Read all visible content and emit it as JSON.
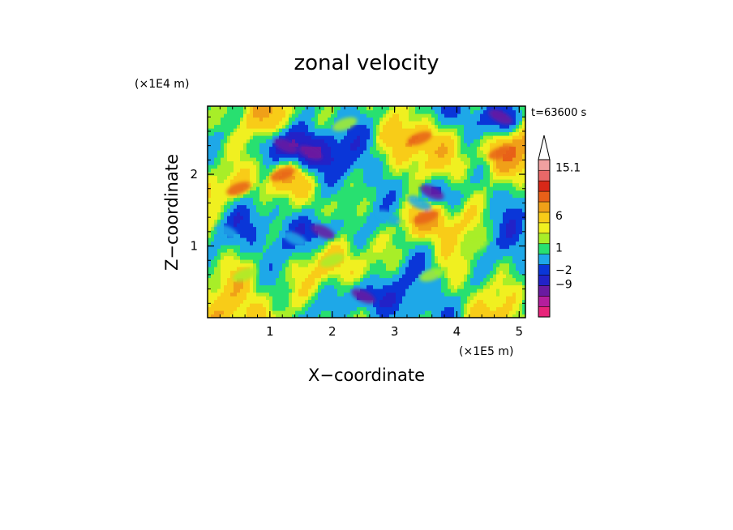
{
  "chart_data": {
    "type": "heatmap",
    "title": "zonal velocity",
    "xlabel": "X−coordinate",
    "ylabel": "Z−coordinate",
    "x_unit": "(×1E5 m)",
    "y_unit": "(×1E4 m)",
    "time_label": "t=63600 s",
    "xlim": [
      0,
      5.1
    ],
    "ylim": [
      0,
      2.95
    ],
    "x_ticks": [
      1,
      2,
      3,
      4,
      5
    ],
    "y_ticks": [
      1,
      2
    ],
    "colorbar": {
      "labels": [
        "15.1",
        "6",
        "1",
        "−2",
        "−9"
      ],
      "colors": [
        "#e8247a",
        "#b51e9c",
        "#6a1aa0",
        "#2222c8",
        "#0a36d8",
        "#1ea8e8",
        "#28e070",
        "#a8ee28",
        "#f0f020",
        "#f8cc18",
        "#f0a018",
        "#e86018",
        "#d82818",
        "#e86868",
        "#f0a0a0"
      ],
      "extend_max": true
    },
    "background_color": "#ffff40",
    "field_features": [
      {
        "u": -9,
        "x": 1.25,
        "z": 2.4
      },
      {
        "u": -9,
        "x": 1.65,
        "z": 2.3
      },
      {
        "u": -9,
        "x": 1.85,
        "z": 1.2
      },
      {
        "u": -9,
        "x": 3.6,
        "z": 1.75
      },
      {
        "u": -9,
        "x": 4.7,
        "z": 2.8
      },
      {
        "u": -9,
        "x": 2.5,
        "z": 0.3
      },
      {
        "u": -2,
        "x": 0.3,
        "z": 1.2
      },
      {
        "u": -2,
        "x": 1.4,
        "z": 1.1
      },
      {
        "u": -2,
        "x": 3.4,
        "z": 1.6
      },
      {
        "u": -2,
        "x": 2.9,
        "z": 1.4
      },
      {
        "u": 6,
        "x": 0.5,
        "z": 1.8
      },
      {
        "u": 6,
        "x": 4.7,
        "z": 2.3
      },
      {
        "u": 6,
        "x": 3.4,
        "z": 2.5
      },
      {
        "u": 6,
        "x": 3.5,
        "z": 1.4
      },
      {
        "u": 6,
        "x": 1.2,
        "z": 2.0
      },
      {
        "u": 0,
        "x": 0.6,
        "z": 0.6
      },
      {
        "u": 0,
        "x": 2.0,
        "z": 0.8
      },
      {
        "u": 0,
        "x": 3.6,
        "z": 0.6
      },
      {
        "u": 0,
        "x": 4.3,
        "z": 1.0
      },
      {
        "u": 0,
        "x": 2.2,
        "z": 2.7
      }
    ]
  }
}
